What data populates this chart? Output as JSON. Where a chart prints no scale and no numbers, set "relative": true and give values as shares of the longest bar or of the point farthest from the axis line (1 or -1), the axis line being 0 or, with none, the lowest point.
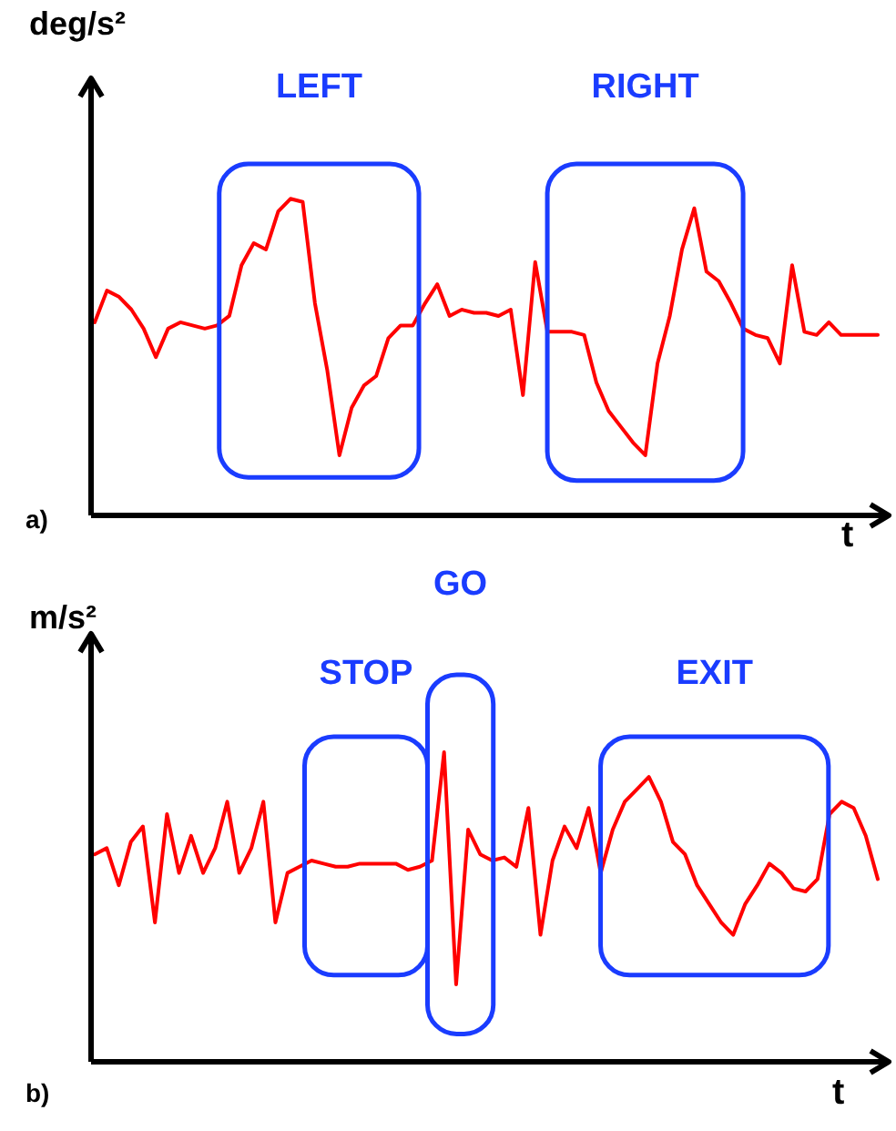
{
  "chart_data": [
    {
      "type": "line",
      "title": "a)",
      "ylabel": "deg/s²",
      "xlabel": "t",
      "relative": true,
      "legend": false,
      "marker": "none",
      "line_style": "solid",
      "annotations": [
        "LEFT",
        "RIGHT"
      ],
      "categories": [
        null,
        null,
        null,
        null,
        null,
        null,
        null,
        null,
        null,
        null,
        null,
        null,
        null,
        null,
        null,
        null,
        null,
        null,
        null,
        null,
        null,
        null,
        null,
        null,
        null,
        null,
        null,
        null,
        null,
        null,
        null,
        null,
        null,
        null,
        null,
        null,
        null,
        null,
        null,
        null,
        null,
        null,
        null,
        null,
        null,
        null,
        null,
        null,
        null,
        null,
        null,
        null,
        null,
        null,
        null,
        null,
        null,
        null,
        null,
        null,
        null,
        null,
        null,
        null,
        null
      ],
      "series": [
        {
          "color": "#ff0000",
          "values": [
            0.61,
            0.71,
            0.69,
            0.65,
            0.59,
            0.5,
            0.59,
            0.61,
            0.6,
            0.59,
            0.6,
            0.63,
            0.79,
            0.86,
            0.84,
            0.96,
            1.0,
            0.99,
            0.67,
            0.46,
            0.19,
            0.34,
            0.41,
            0.44,
            0.56,
            0.6,
            0.6,
            0.67,
            0.73,
            0.63,
            0.65,
            0.64,
            0.64,
            0.63,
            0.65,
            0.38,
            0.8,
            0.58,
            0.58,
            0.58,
            0.57,
            0.42,
            0.33,
            0.28,
            0.23,
            0.19,
            0.48,
            0.63,
            0.84,
            0.97,
            0.77,
            0.74,
            0.67,
            0.59,
            0.57,
            0.56,
            0.48,
            0.79,
            0.58,
            0.57,
            0.61,
            0.57,
            0.57,
            0.57,
            0.57
          ]
        }
      ]
    },
    {
      "type": "line",
      "title": "b)",
      "ylabel": "m/s²",
      "xlabel": "t",
      "relative": true,
      "legend": false,
      "marker": "none",
      "line_style": "solid",
      "annotations": [
        "STOP",
        "GO",
        "EXIT"
      ],
      "categories": [
        null,
        null,
        null,
        null,
        null,
        null,
        null,
        null,
        null,
        null,
        null,
        null,
        null,
        null,
        null,
        null,
        null,
        null,
        null,
        null,
        null,
        null,
        null,
        null,
        null,
        null,
        null,
        null,
        null,
        null,
        null,
        null,
        null,
        null,
        null,
        null,
        null,
        null,
        null,
        null,
        null,
        null,
        null,
        null,
        null,
        null,
        null,
        null,
        null,
        null,
        null,
        null,
        null,
        null,
        null,
        null,
        null,
        null,
        null,
        null,
        null,
        null,
        null,
        null,
        null,
        null
      ],
      "series": [
        {
          "color": "#ff0000",
          "values": [
            0.67,
            0.69,
            0.57,
            0.71,
            0.76,
            0.45,
            0.8,
            0.61,
            0.73,
            0.61,
            0.69,
            0.84,
            0.61,
            0.69,
            0.84,
            0.45,
            0.61,
            0.63,
            0.65,
            0.64,
            0.63,
            0.63,
            0.64,
            0.64,
            0.64,
            0.64,
            0.62,
            0.63,
            0.65,
            1.0,
            0.25,
            0.75,
            0.67,
            0.65,
            0.66,
            0.63,
            0.82,
            0.41,
            0.65,
            0.76,
            0.69,
            0.82,
            0.61,
            0.75,
            0.84,
            0.88,
            0.92,
            0.84,
            0.71,
            0.67,
            0.57,
            0.51,
            0.45,
            0.41,
            0.51,
            0.57,
            0.64,
            0.61,
            0.56,
            0.55,
            0.59,
            0.8,
            0.84,
            0.82,
            0.73,
            0.59
          ]
        }
      ]
    }
  ]
}
